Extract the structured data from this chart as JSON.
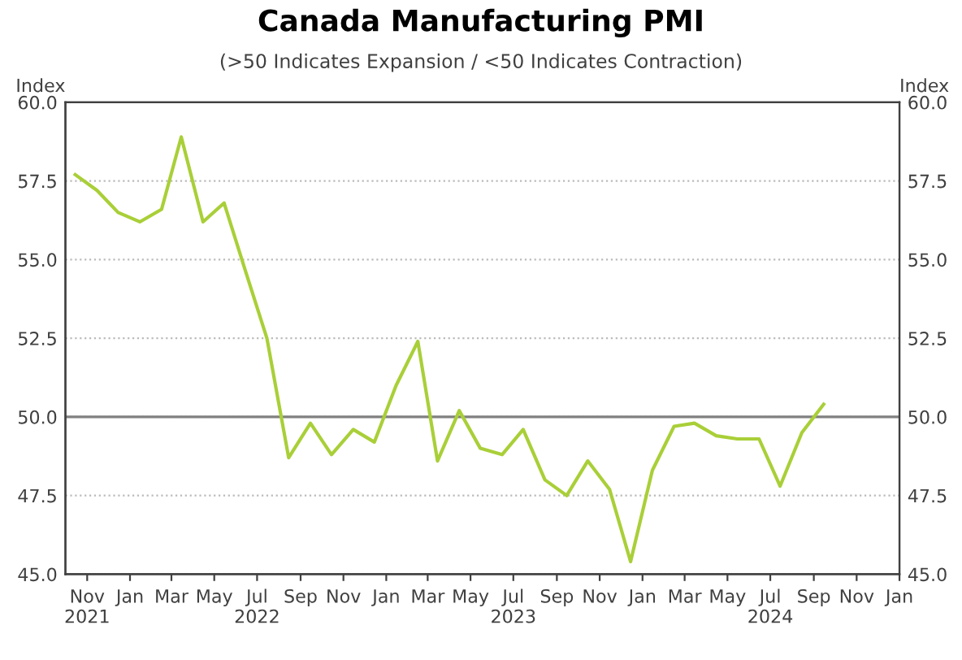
{
  "chart_data": {
    "type": "line",
    "title": "Canada Manufacturing PMI",
    "subtitle": "(>50 Indicates Expansion / <50 Indicates Contraction)",
    "ylabel": "Index",
    "y2label": "Index",
    "x": [
      "2021-10-15",
      "2021-11-15",
      "2021-12-15",
      "2022-01-15",
      "2022-02-15",
      "2022-03-15",
      "2022-04-15",
      "2022-05-15",
      "2022-06-15",
      "2022-07-15",
      "2022-08-15",
      "2022-09-15",
      "2022-10-15",
      "2022-11-15",
      "2022-12-15",
      "2023-01-15",
      "2023-02-15",
      "2023-03-15",
      "2023-04-15",
      "2023-05-15",
      "2023-06-15",
      "2023-07-15",
      "2023-08-15",
      "2023-09-15",
      "2023-10-15",
      "2023-11-15",
      "2023-12-15",
      "2024-01-15",
      "2024-02-15",
      "2024-03-15",
      "2024-04-15",
      "2024-05-15",
      "2024-06-15",
      "2024-07-15",
      "2024-08-15",
      "2024-09-15"
    ],
    "series": [
      {
        "color": "#a9cf38",
        "values": [
          57.7,
          57.2,
          56.5,
          56.2,
          56.6,
          58.9,
          56.2,
          56.8,
          54.6,
          52.5,
          48.7,
          49.8,
          48.8,
          49.6,
          49.2,
          51.0,
          52.4,
          48.6,
          50.2,
          49.0,
          48.8,
          49.6,
          48.0,
          47.5,
          48.6,
          47.7,
          45.4,
          48.3,
          49.7,
          49.8,
          49.4,
          49.3,
          49.3,
          47.8,
          49.5,
          50.4
        ]
      }
    ],
    "xlim": [
      "2021-10-01",
      "2025-01-01"
    ],
    "xticks": [
      {
        "value": "2021-11-01",
        "label": "Nov\n2021"
      },
      {
        "value": "2022-01-01",
        "label": "Jan"
      },
      {
        "value": "2022-03-01",
        "label": "Mar"
      },
      {
        "value": "2022-05-01",
        "label": "May"
      },
      {
        "value": "2022-07-01",
        "label": "Jul\n2022"
      },
      {
        "value": "2022-09-01",
        "label": "Sep"
      },
      {
        "value": "2022-11-01",
        "label": "Nov"
      },
      {
        "value": "2023-01-01",
        "label": "Jan"
      },
      {
        "value": "2023-03-01",
        "label": "Mar"
      },
      {
        "value": "2023-05-01",
        "label": "May"
      },
      {
        "value": "2023-07-01",
        "label": "Jul\n2023"
      },
      {
        "value": "2023-09-01",
        "label": "Sep"
      },
      {
        "value": "2023-11-01",
        "label": "Nov"
      },
      {
        "value": "2024-01-01",
        "label": "Jan"
      },
      {
        "value": "2024-03-01",
        "label": "Mar"
      },
      {
        "value": "2024-05-01",
        "label": "May"
      },
      {
        "value": "2024-07-01",
        "label": "Jul\n2024"
      },
      {
        "value": "2024-09-01",
        "label": "Sep"
      },
      {
        "value": "2024-11-01",
        "label": "Nov"
      },
      {
        "value": "2025-01-01",
        "label": "Jan"
      }
    ],
    "ylim": [
      45,
      60
    ],
    "yticks": [
      {
        "value": 45,
        "label": "45.0"
      },
      {
        "value": 47.5,
        "label": "47.5"
      },
      {
        "value": 50,
        "label": "50.0"
      },
      {
        "value": 52.5,
        "label": "52.5"
      },
      {
        "value": 55,
        "label": "55.0"
      },
      {
        "value": 57.5,
        "label": "57.5"
      },
      {
        "value": 60,
        "label": "60.0"
      }
    ],
    "y2lim": [
      45,
      60
    ],
    "y2ticks": [
      {
        "value": 45,
        "label": "45.0"
      },
      {
        "value": 47.5,
        "label": "47.5"
      },
      {
        "value": 50,
        "label": "50.0"
      },
      {
        "value": 52.5,
        "label": "52.5"
      },
      {
        "value": 55,
        "label": "55.0"
      },
      {
        "value": 57.5,
        "label": "57.5"
      },
      {
        "value": 60,
        "label": "60.0"
      }
    ],
    "ref_lines": [
      {
        "axis": "y",
        "value": 50,
        "color": "#808080"
      }
    ],
    "grid": "y",
    "legend": false,
    "marker": "none",
    "line_style": "solid"
  }
}
